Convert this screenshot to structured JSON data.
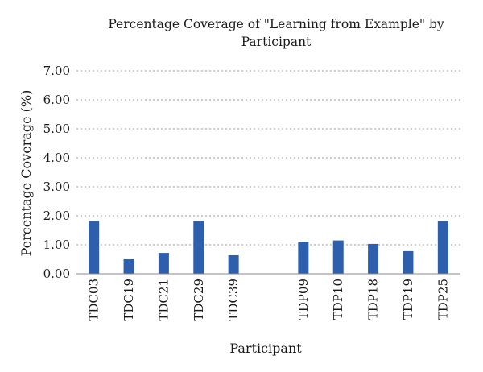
{
  "chart_data": {
    "type": "bar",
    "title_lines": [
      "Percentage Coverage of \"Learning from Example\" by",
      "Participant"
    ],
    "xlabel": "Participant",
    "ylabel": "Percentage Coverage (%)",
    "ylim": [
      0,
      7
    ],
    "yticks": [
      "0.00",
      "1.00",
      "2.00",
      "3.00",
      "4.00",
      "5.00",
      "6.00",
      "7.00"
    ],
    "grid": true,
    "categories": [
      "TDC03",
      "TDC19",
      "TDC21",
      "TDC29",
      "TDC39",
      "",
      "TDP09",
      "TDP10",
      "TDP18",
      "TDP19",
      "TDP25"
    ],
    "values": [
      1.82,
      0.5,
      0.72,
      1.82,
      0.64,
      null,
      1.1,
      1.15,
      1.03,
      0.78,
      1.82
    ],
    "bar_color": "#2e5fac"
  }
}
